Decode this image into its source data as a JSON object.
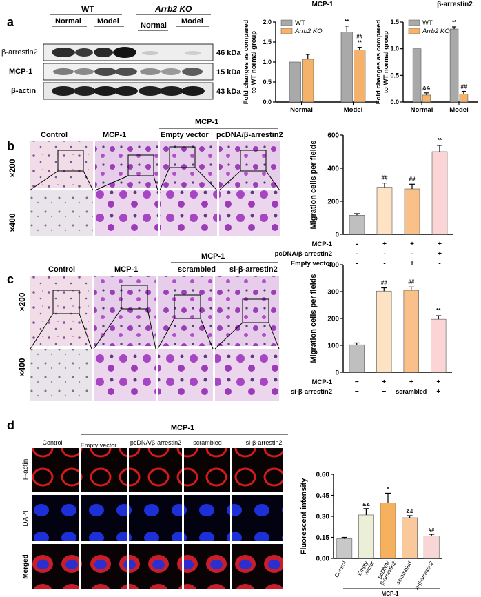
{
  "panels": {
    "a": "a",
    "b": "b",
    "c": "c",
    "d": "d"
  },
  "blot": {
    "groups": [
      "WT",
      "Arrb2 KO"
    ],
    "conditions": [
      "Normal",
      "Model",
      "Normal",
      "Model"
    ],
    "bands": [
      {
        "name": "β-arrestin2",
        "kda": "46 kDa"
      },
      {
        "name": "MCP-1",
        "kda": "15 kDa"
      },
      {
        "name": "β-actin",
        "kda": "43 kDa"
      }
    ]
  },
  "micro_b": {
    "columns": [
      "Control",
      "MCP-1",
      "Empty vector",
      "pcDNA/β-arrestin2"
    ],
    "group_label": "MCP-1",
    "rows": [
      "×200",
      "×400"
    ]
  },
  "micro_c": {
    "columns": [
      "Control",
      "MCP-1",
      "scrambled",
      "si-β-arrestin2"
    ],
    "group_label": "MCP-1",
    "rows": [
      "×200",
      "×400"
    ]
  },
  "micro_d": {
    "columns": [
      "Control",
      "Empty vector",
      "pcDNA/β-arrestin2",
      "scrambled",
      "si-β-arrestin2"
    ],
    "group_label": "MCP-1",
    "rows": [
      "F-actin",
      "DAPI",
      "Merged"
    ]
  },
  "colors": {
    "wt": "#a9a9a9",
    "ko": "#f5b26b",
    "b_bars": [
      "#bfbfbf",
      "#fde3c4",
      "#f9c189",
      "#fbd5d5"
    ],
    "c_bars": [
      "#bfbfbf",
      "#fde3c4",
      "#f9c189",
      "#fbd5d5"
    ],
    "d_bars": [
      "#c8c8c8",
      "#ecefd7",
      "#f6b15e",
      "#f9c99c",
      "#f8d6d6"
    ]
  },
  "chart_data": [
    {
      "id": "a-mcp1",
      "type": "bar",
      "title": "MCP-1",
      "ylabel": "Fold changes as compared to WT normal group",
      "categories": [
        "Normal",
        "Model"
      ],
      "series": [
        {
          "name": "WT",
          "values": [
            1.0,
            1.75
          ],
          "errors": [
            0.0,
            0.15
          ],
          "marks": [
            "",
            "**"
          ]
        },
        {
          "name": "Arrb2 KO",
          "values": [
            1.07,
            1.3
          ],
          "errors": [
            0.12,
            0.07
          ],
          "marks": [
            "",
            "##\n**"
          ]
        }
      ],
      "ylim": [
        0,
        2.0
      ],
      "yticks": [
        "0.0",
        "0.5",
        "1.0",
        "1.5",
        "2.0"
      ],
      "legend": "top-left"
    },
    {
      "id": "a-arrb2",
      "type": "bar",
      "title": "β-arrestin2",
      "ylabel": "Fold changes as compared to WT normal group",
      "categories": [
        "Normal",
        "Model"
      ],
      "series": [
        {
          "name": "WT",
          "values": [
            1.0,
            1.37
          ],
          "errors": [
            0.0,
            0.04
          ],
          "marks": [
            "",
            "**"
          ]
        },
        {
          "name": "Arrb2 KO",
          "values": [
            0.13,
            0.15
          ],
          "errors": [
            0.04,
            0.05
          ],
          "marks": [
            "&&",
            "##"
          ]
        }
      ],
      "ylim": [
        0,
        1.5
      ],
      "yticks": [
        "0.0",
        "0.5",
        "1.0",
        "1.5"
      ],
      "legend": "top-left"
    },
    {
      "id": "b",
      "type": "bar",
      "ylabel": "Migration cells per fields",
      "values": [
        115,
        285,
        275,
        500
      ],
      "errors": [
        10,
        25,
        28,
        38
      ],
      "marks": [
        "",
        "##",
        "##",
        "**"
      ],
      "ylim": [
        0,
        600
      ],
      "yticks": [
        "0",
        "200",
        "400",
        "600"
      ],
      "factors": [
        {
          "name": "MCP-1",
          "signs": [
            "-",
            "+",
            "+",
            "+"
          ]
        },
        {
          "name": "pcDNA/β-arrestin2",
          "signs": [
            "-",
            "-",
            "-",
            "+"
          ]
        },
        {
          "name": "Empty vector",
          "signs": [
            "-",
            "-",
            "+",
            "-"
          ]
        }
      ]
    },
    {
      "id": "c",
      "type": "bar",
      "ylabel": "Migration cells per fields",
      "values": [
        102,
        302,
        305,
        197
      ],
      "errors": [
        7,
        12,
        12,
        13
      ],
      "marks": [
        "",
        "##",
        "##",
        "**"
      ],
      "ylim": [
        0,
        400
      ],
      "yticks": [
        "0",
        "100",
        "200",
        "300",
        "400"
      ],
      "factors": [
        {
          "name": "MCP-1",
          "signs": [
            "−",
            "+",
            "+",
            "+"
          ]
        },
        {
          "name": "si-β-arrestin2",
          "signs": [
            "−",
            "−",
            "scrambled",
            "+"
          ]
        }
      ]
    },
    {
      "id": "d",
      "type": "bar",
      "ylabel": "Fluorescent intensity",
      "categories": [
        "Control",
        "Empty vector",
        "pcDNA/ β-arrestin2",
        "scrambled",
        "si-β-arrestin2"
      ],
      "values": [
        0.14,
        0.31,
        0.395,
        0.29,
        0.16
      ],
      "errors": [
        0.01,
        0.045,
        0.07,
        0.015,
        0.012
      ],
      "marks": [
        "",
        "&&",
        "*",
        "&&",
        "##"
      ],
      "ylim": [
        0,
        0.6
      ],
      "yticks": [
        "0.00",
        "0.15",
        "0.30",
        "0.45",
        "0.60"
      ],
      "group_label": "MCP-1"
    }
  ]
}
